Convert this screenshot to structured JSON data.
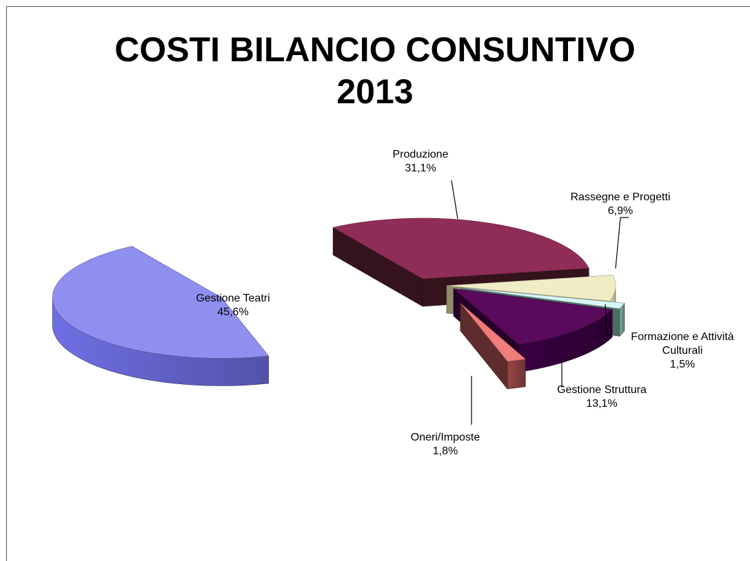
{
  "chart_data": {
    "type": "pie",
    "title": "COSTI BILANCIO CONSUNTIVO 2013",
    "title_lines": [
      "COSTI BILANCIO CONSUNTIVO",
      "2013"
    ],
    "style": "3d-exploded",
    "legend": "none",
    "slices": [
      {
        "label": "Produzione",
        "value": 31.1,
        "value_label": "31,1%",
        "label_lines": [
          "Produzione"
        ],
        "color": "#8f2d56",
        "side_color": "#3e1622"
      },
      {
        "label": "Rassegne e Progetti",
        "value": 6.9,
        "value_label": "6,9%",
        "label_lines": [
          "Rassegne e Progetti"
        ],
        "color": "#f0ecc4",
        "side_color": "#a8a47e"
      },
      {
        "label": "Formazione e Attività Culturali",
        "value": 1.5,
        "value_label": "1,5%",
        "label_lines": [
          "Formazione e Attività",
          "Culturali"
        ],
        "color": "#d8f6f6",
        "side_color": "#5b7f78"
      },
      {
        "label": "Gestione Struttura",
        "value": 13.1,
        "value_label": "13,1%",
        "label_lines": [
          "Gestione Struttura"
        ],
        "color": "#5a0a5a",
        "side_color": "#2a0030"
      },
      {
        "label": "Oneri/Imposte",
        "value": 1.8,
        "value_label": "1,8%",
        "label_lines": [
          "Oneri/Imposte"
        ],
        "color": "#f07c7c",
        "side_color": "#6e3434"
      },
      {
        "label": "Gestione Teatri",
        "value": 45.6,
        "value_label": "45,6%",
        "label_lines": [
          "Gestione Teatri"
        ],
        "color": "#8f8ff0",
        "side_color": "#5252a8"
      }
    ]
  }
}
